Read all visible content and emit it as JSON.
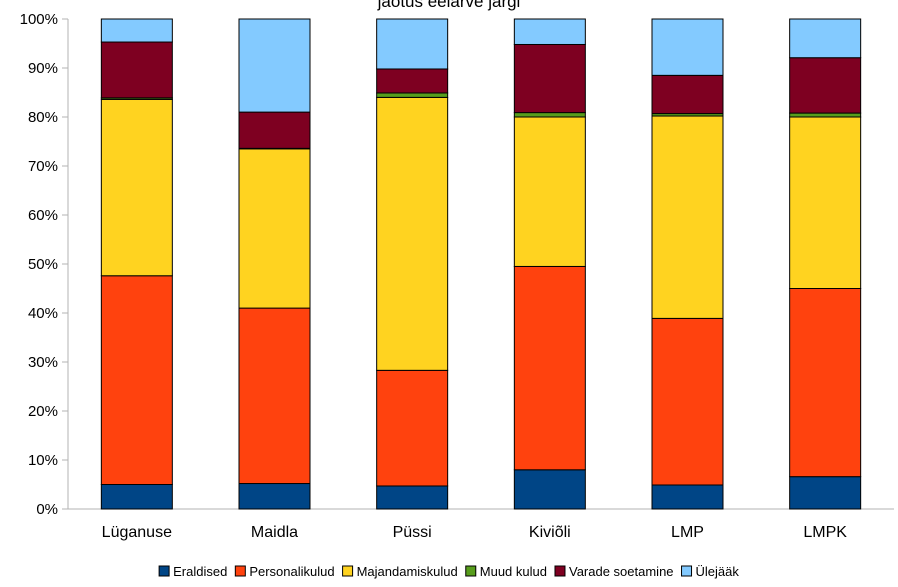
{
  "chart_data": {
    "type": "bar",
    "stacked": true,
    "percent": true,
    "title": "",
    "title_fragment": "jaotus eelarve järgi",
    "categories": [
      "Lüganuse",
      "Maidla",
      "Püssi",
      "Kiviõli",
      "LMP",
      "LMPK"
    ],
    "series": [
      {
        "name": "Eraldised",
        "color": "#004586",
        "values": [
          5.0,
          5.2,
          4.7,
          8.0,
          4.9,
          6.6
        ]
      },
      {
        "name": "Personalikulud",
        "color": "#ff420e",
        "values": [
          42.6,
          35.8,
          23.6,
          41.5,
          34.0,
          38.4
        ]
      },
      {
        "name": "Majandamiskulud",
        "color": "#ffd320",
        "values": [
          36.0,
          32.5,
          55.7,
          30.5,
          41.3,
          35.0
        ]
      },
      {
        "name": "Muud kulud",
        "color": "#579d1c",
        "values": [
          0.3,
          0.1,
          0.9,
          0.9,
          0.5,
          0.8
        ]
      },
      {
        "name": "Varade soetamine",
        "color": "#7e0021",
        "values": [
          11.4,
          7.4,
          4.9,
          13.9,
          7.8,
          11.3
        ]
      },
      {
        "name": "Ülejääk",
        "color": "#83caff",
        "values": [
          4.7,
          19.0,
          10.2,
          5.2,
          11.5,
          7.9
        ]
      }
    ],
    "yticks": [
      "0%",
      "10%",
      "20%",
      "30%",
      "40%",
      "50%",
      "60%",
      "70%",
      "80%",
      "90%",
      "100%"
    ],
    "ylim": [
      0,
      100
    ],
    "grid": false,
    "legend_position": "bottom"
  }
}
